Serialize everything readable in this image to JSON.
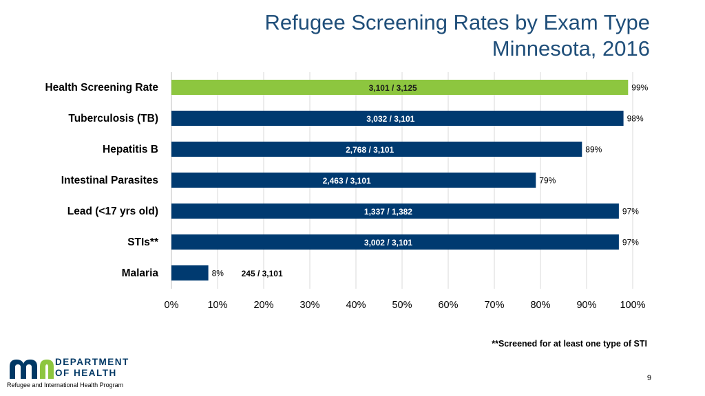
{
  "title": {
    "line1": "Refugee Screening Rates by Exam Type",
    "line2": "Minnesota, 2016"
  },
  "chart_data": {
    "type": "bar",
    "orientation": "horizontal",
    "categories": [
      "Health Screening Rate",
      "Tuberculosis (TB)",
      "Hepatitis B",
      "Intestinal Parasites",
      "Lead (<17 yrs old)",
      "STIs**",
      "Malaria"
    ],
    "values": [
      99,
      98,
      89,
      79,
      97,
      97,
      8
    ],
    "value_labels": [
      "99%",
      "98%",
      "89%",
      "79%",
      "97%",
      "97%",
      "8%"
    ],
    "count_labels": [
      "3,101 / 3,125",
      "3,032 / 3,101",
      "2,768 / 3,101",
      "2,463 / 3,101",
      "1,337 / 1,382",
      "3,002 / 3,101",
      "245 / 3,101"
    ],
    "bar_colors": [
      "#8dc63f",
      "#003a70",
      "#003a70",
      "#003a70",
      "#003a70",
      "#003a70",
      "#003a70"
    ],
    "xlim": [
      0,
      100
    ],
    "xticks": [
      "0%",
      "10%",
      "20%",
      "30%",
      "40%",
      "50%",
      "60%",
      "70%",
      "80%",
      "90%",
      "100%"
    ],
    "grid": true
  },
  "footnote": "**Screened for at least one type of STI",
  "logo": {
    "line1": "DEPARTMENT",
    "line2": "OF HEALTH"
  },
  "program": "Refugee and International Health Program",
  "page_number": "9",
  "colors": {
    "title": "#1f4e79",
    "brand_green": "#8dc63f",
    "brand_navy": "#003865",
    "bar_navy": "#003a70"
  }
}
